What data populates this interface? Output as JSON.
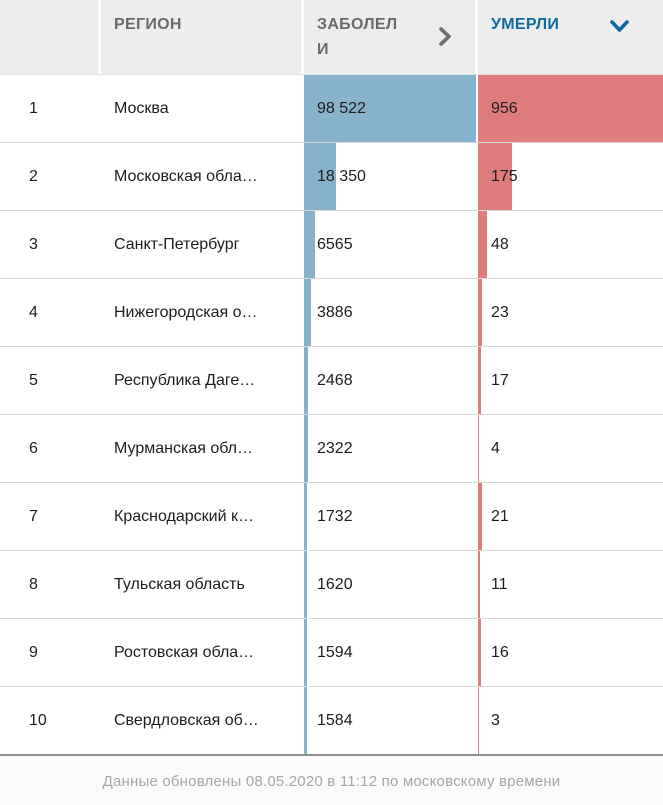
{
  "table": {
    "header": {
      "rank": "",
      "region": "РЕГИОН",
      "infected": "ЗАБОЛЕЛИ",
      "died": "УМЕРЛИ",
      "infected_sort_icon": "chevron-right",
      "died_sort_icon": "chevron-down",
      "sorted_by": "УМЕРЛИ",
      "sort_direction": "desc"
    },
    "rows": [
      {
        "rank": "1",
        "region": "Москва",
        "infected": "98 522",
        "infected_value": 98522,
        "died": "956",
        "died_value": 956
      },
      {
        "rank": "2",
        "region": "Московская обла…",
        "infected": "18 350",
        "infected_value": 18350,
        "died": "175",
        "died_value": 175
      },
      {
        "rank": "3",
        "region": "Санкт-Петербург",
        "infected": "6565",
        "infected_value": 6565,
        "died": "48",
        "died_value": 48
      },
      {
        "rank": "4",
        "region": "Нижегородская о…",
        "infected": "3886",
        "infected_value": 3886,
        "died": "23",
        "died_value": 23
      },
      {
        "rank": "5",
        "region": "Республика Даге…",
        "infected": "2468",
        "infected_value": 2468,
        "died": "17",
        "died_value": 17
      },
      {
        "rank": "6",
        "region": "Мурманская обл…",
        "infected": "2322",
        "infected_value": 2322,
        "died": "4",
        "died_value": 4
      },
      {
        "rank": "7",
        "region": "Краснодарский к…",
        "infected": "1732",
        "infected_value": 1732,
        "died": "21",
        "died_value": 21
      },
      {
        "rank": "8",
        "region": "Тульская область",
        "infected": "1620",
        "infected_value": 1620,
        "died": "11",
        "died_value": 11
      },
      {
        "rank": "9",
        "region": "Ростовская обла…",
        "infected": "1594",
        "infected_value": 1594,
        "died": "16",
        "died_value": 16
      },
      {
        "rank": "10",
        "region": "Свердловская об…",
        "infected": "1584",
        "infected_value": 1584,
        "died": "3",
        "died_value": 3
      }
    ]
  },
  "footer": {
    "updated_text": "Данные обновлены 08.05.2020 в 11:12 по московскому времени"
  },
  "colors": {
    "infected_bar": "#87b2cc",
    "died_bar": "#df7d7d",
    "header_bg": "#ededed",
    "header_text": "#6a6a6a",
    "sorted_header_text": "#0e6a9e",
    "sort_icon_gray": "#6f6f6f",
    "body_text": "#1d1d1d",
    "row_divider": "#d9d9d9",
    "table_bottom_border": "#8f8f8f",
    "footer_text": "#a6a6a6"
  },
  "chart_data": {
    "type": "table",
    "title": "",
    "categories": [
      "Москва",
      "Московская обла…",
      "Санкт-Петербург",
      "Нижегородская о…",
      "Республика Даге…",
      "Мурманская обл…",
      "Краснодарский к…",
      "Тульская область",
      "Ростовская обла…",
      "Свердловская об…"
    ],
    "ranks": [
      1,
      2,
      3,
      4,
      5,
      6,
      7,
      8,
      9,
      10
    ],
    "series": [
      {
        "name": "ЗАБОЛЕЛИ",
        "values": [
          98522,
          18350,
          6565,
          3886,
          2468,
          2322,
          1732,
          1620,
          1594,
          1584
        ],
        "bar_color": "#87b2cc"
      },
      {
        "name": "УМЕРЛИ",
        "values": [
          956,
          175,
          48,
          23,
          17,
          4,
          21,
          11,
          16,
          3
        ],
        "bar_color": "#df7d7d"
      }
    ],
    "sort": {
      "column": "УМЕРЛИ",
      "direction": "desc"
    },
    "note": "Данные обновлены 08.05.2020 в 11:12 по московскому времени"
  }
}
